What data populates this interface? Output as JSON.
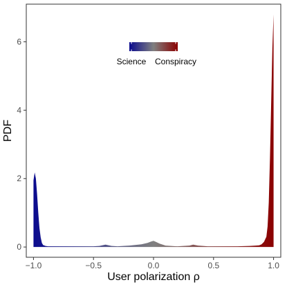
{
  "chart_data": {
    "type": "area",
    "xlabel": "User polarization ρ",
    "ylabel": "PDF",
    "xlim": [
      -1.06,
      1.06
    ],
    "ylim": [
      -0.3,
      7.1
    ],
    "xticks": [
      -1.0,
      -0.5,
      0.0,
      0.5,
      1.0
    ],
    "xtick_labels": [
      "−1.0",
      "−0.5",
      "0.0",
      "0.5",
      "1.0"
    ],
    "yticks": [
      0,
      2,
      4,
      6
    ],
    "ytick_labels": [
      "0",
      "2",
      "4",
      "6"
    ],
    "grid": false,
    "legend": {
      "type": "colorbar",
      "placement": "top-center",
      "low_label": "Science",
      "high_label": "Conspiracy",
      "colors": [
        "#0b0b8e",
        "#808080",
        "#8b0000"
      ]
    },
    "series": [
      {
        "x": [
          -1.0,
          -0.99,
          -0.98,
          -0.97,
          -0.96,
          -0.95,
          -0.94,
          -0.93,
          -0.92,
          -0.9,
          -0.88,
          -0.85,
          -0.8,
          -0.7,
          -0.6,
          -0.5,
          -0.45,
          -0.4,
          -0.35,
          -0.3,
          -0.2,
          -0.1,
          -0.05,
          -0.02,
          0.0,
          0.02,
          0.05,
          0.1,
          0.2,
          0.3,
          0.33,
          0.37,
          0.45,
          0.5,
          0.6,
          0.7,
          0.8,
          0.85,
          0.88,
          0.9,
          0.92,
          0.94,
          0.95,
          0.96,
          0.97,
          0.98,
          0.99,
          1.0
        ],
        "y": [
          1.95,
          2.18,
          2.0,
          1.55,
          1.0,
          0.55,
          0.28,
          0.12,
          0.06,
          0.03,
          0.02,
          0.02,
          0.02,
          0.02,
          0.02,
          0.02,
          0.03,
          0.07,
          0.03,
          0.02,
          0.04,
          0.08,
          0.12,
          0.16,
          0.18,
          0.15,
          0.1,
          0.04,
          0.02,
          0.04,
          0.07,
          0.04,
          0.02,
          0.02,
          0.02,
          0.02,
          0.03,
          0.04,
          0.05,
          0.08,
          0.15,
          0.3,
          0.6,
          1.3,
          2.6,
          4.2,
          5.8,
          6.8
        ]
      }
    ]
  }
}
